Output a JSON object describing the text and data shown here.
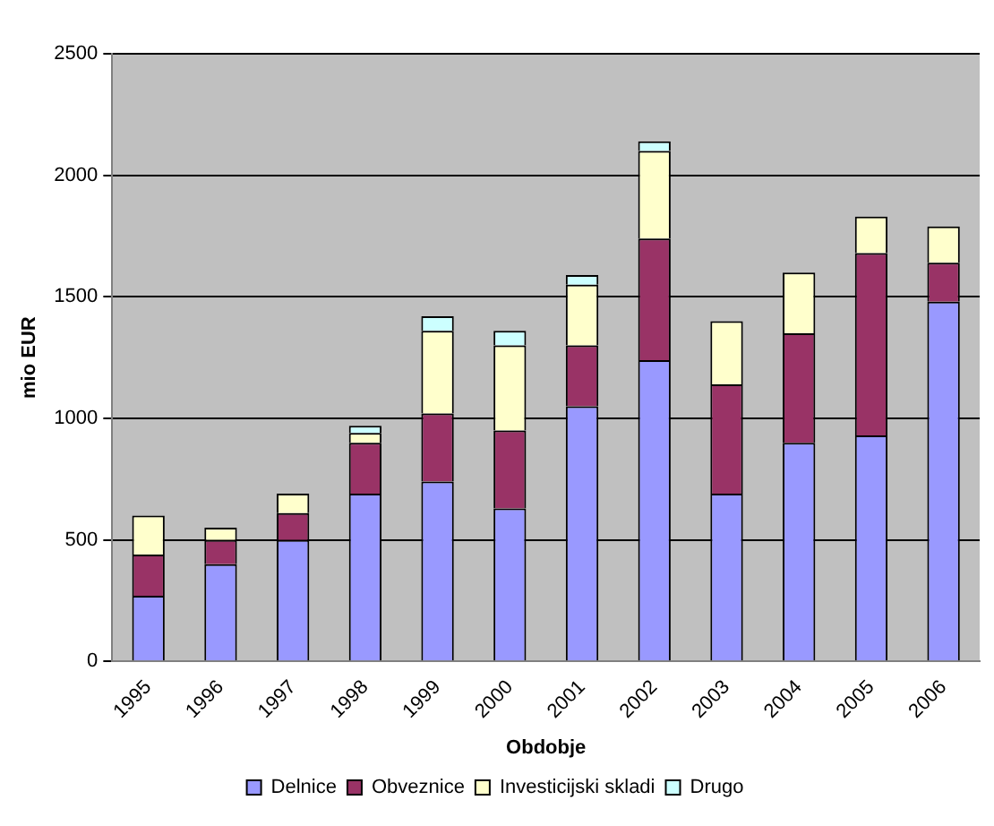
{
  "chart_data": {
    "type": "bar",
    "xlabel": "Obdobje",
    "ylabel": "mio EUR",
    "stacked": true,
    "categories": [
      "1995",
      "1996",
      "1997",
      "1998",
      "1999",
      "2000",
      "2001",
      "2002",
      "2003",
      "2004",
      "2005",
      "2006"
    ],
    "series": [
      {
        "name": "Delnice",
        "color": "#9999ff",
        "values": [
          270,
          400,
          500,
          690,
          740,
          630,
          1050,
          1240,
          690,
          900,
          930,
          1480
        ]
      },
      {
        "name": "Obveznice",
        "color": "#993366",
        "values": [
          170,
          100,
          110,
          210,
          280,
          320,
          250,
          500,
          450,
          450,
          750,
          160
        ]
      },
      {
        "name": "Investicijski skladi",
        "color": "#ffffcc",
        "values": [
          160,
          50,
          80,
          40,
          340,
          350,
          250,
          360,
          260,
          250,
          150,
          150
        ]
      },
      {
        "name": "Drugo",
        "color": "#ccffff",
        "values": [
          0,
          0,
          0,
          30,
          60,
          60,
          40,
          40,
          0,
          0,
          0,
          0
        ]
      }
    ],
    "ylim": [
      0,
      2500
    ],
    "yticks": [
      0,
      500,
      1000,
      1500,
      2000,
      2500
    ],
    "grid": "y",
    "legend": "bottom"
  }
}
